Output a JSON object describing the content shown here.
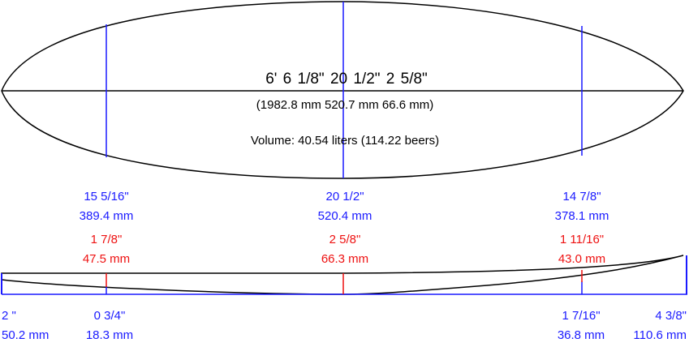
{
  "outline": {
    "dims_imperial": "6'  6 1/8\"   20 1/2\"   2 5/8\"",
    "dims_metric": "(1982.8 mm   520.7 mm   66.6 mm)",
    "volume": "Volume: 40.54 liters (114.22 beers)"
  },
  "widths": [
    {
      "imperial": "15 5/16\"",
      "metric": "389.4 mm"
    },
    {
      "imperial": "20 1/2\"",
      "metric": "520.4 mm"
    },
    {
      "imperial": "14 7/8\"",
      "metric": "378.1 mm"
    }
  ],
  "thickness": [
    {
      "imperial": "1 7/8\"",
      "metric": "47.5 mm"
    },
    {
      "imperial": "2 5/8\"",
      "metric": "66.3 mm"
    },
    {
      "imperial": "1 11/16\"",
      "metric": "43.0 mm"
    }
  ],
  "rocker": [
    {
      "imperial": "2 \"",
      "metric": "50.2 mm"
    },
    {
      "imperial": "0 3/4\"",
      "metric": "18.3 mm"
    },
    {
      "imperial": "1 7/16\"",
      "metric": "36.8 mm"
    },
    {
      "imperial": "4 3/8\"",
      "metric": "110.6 mm"
    }
  ],
  "colors": {
    "outline": "#000000",
    "width_lines": "#1a1aff",
    "thickness_lines": "#ee1111",
    "rocker_lines": "#1a1aff"
  }
}
